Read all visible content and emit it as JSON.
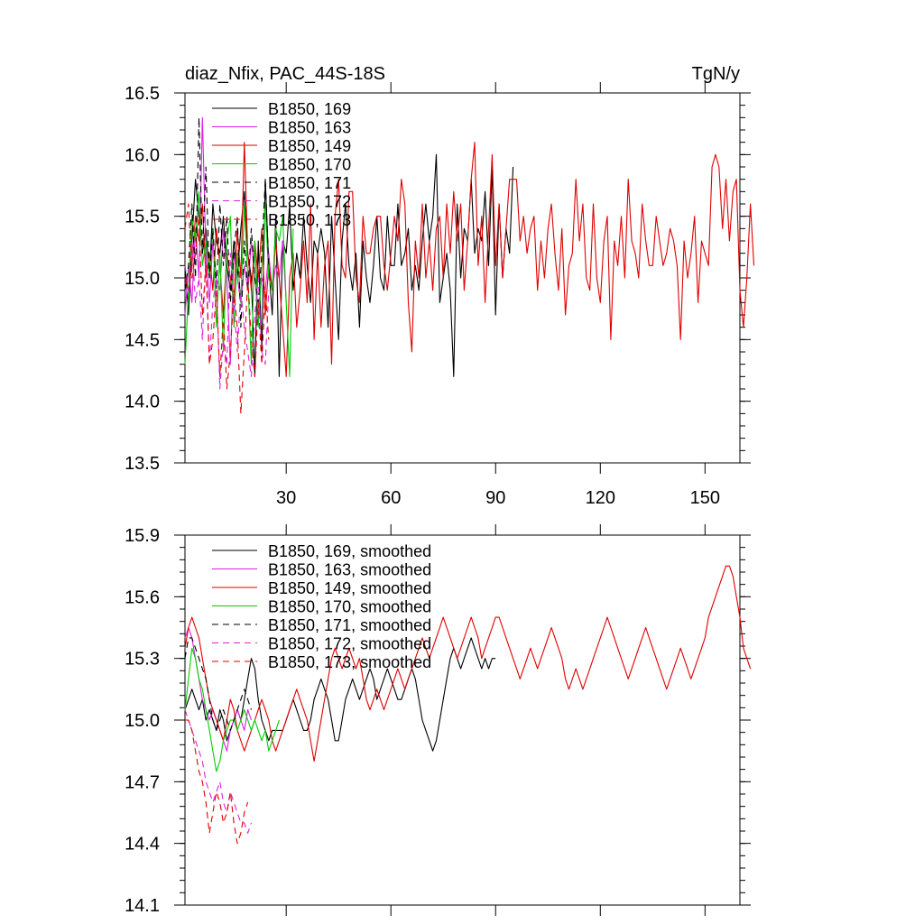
{
  "colors": {
    "black": "#000000",
    "magenta": "#e020e0",
    "red": "#e00000",
    "green": "#00d000"
  },
  "chart_data": [
    {
      "type": "line",
      "title": "diaz_Nfix, PAC_44S-18S",
      "units": "TgN/y",
      "xlim": [
        1,
        160
      ],
      "ylim": [
        13.5,
        16.5
      ],
      "xticks": [
        30,
        60,
        90,
        120,
        150
      ],
      "yticks": [
        13.5,
        14.0,
        14.5,
        15.0,
        15.5,
        16.0,
        16.5
      ],
      "ytick_labels": [
        "13.5",
        "14.0",
        "14.5",
        "15.0",
        "15.5",
        "16.0",
        "16.5"
      ],
      "legend_position": "top-left",
      "series": [
        {
          "name": "B1850, 169",
          "color": "#000000",
          "dash": "solid",
          "values": [
            15.1,
            14.7,
            15.3,
            15.8,
            15.5,
            15.2,
            15.4,
            15.0,
            15.6,
            15.3,
            15.2,
            15.5,
            15.1,
            14.9,
            15.3,
            15.0,
            15.4,
            15.7,
            15.2,
            15.0,
            14.2,
            15.3,
            14.4,
            15.8,
            15.1,
            14.7,
            15.5,
            14.2,
            15.3,
            15.2,
            15.6,
            14.9,
            15.2,
            15.0,
            15.5,
            15.1,
            14.8,
            15.3,
            15.2,
            15.4,
            15.2,
            14.6,
            15.5,
            15.0,
            14.5,
            15.3,
            15.6,
            15.1,
            14.9,
            15.2,
            14.6,
            15.3,
            15.0,
            14.8,
            15.1,
            15.5,
            15.0,
            14.9,
            15.5,
            15.1,
            15.1,
            15.6,
            15.1,
            15.2,
            15.4,
            14.9,
            15.1,
            14.9,
            15.3,
            15.6,
            15.3,
            15.5,
            16.0,
            14.8,
            15.0,
            15.2,
            14.9,
            14.2,
            15.6,
            15.0,
            15.4,
            15.3,
            15.8,
            15.2,
            15.4,
            15.3,
            15.7,
            15.1,
            15.9,
            14.7,
            15.6,
            15.0,
            15.4,
            15.2,
            15.9
          ]
        },
        {
          "name": "B1850, 163",
          "color": "#e020e0",
          "dash": "solid",
          "values": [
            14.7,
            15.1,
            14.8,
            15.4,
            15.0,
            16.3,
            15.2,
            14.8,
            15.3,
            15.0,
            14.9,
            15.4,
            15.0,
            14.3,
            15.2,
            15.0,
            14.8,
            15.1,
            14.9,
            15.3,
            15.0,
            14.7,
            15.0,
            14.9,
            15.2,
            14.9,
            15.1,
            15.0,
            15.3,
            14.8
          ]
        },
        {
          "name": "B1850, 149",
          "color": "#e00000",
          "dash": "solid",
          "values": [
            15.0,
            14.9,
            15.1,
            15.5,
            15.3,
            15.6,
            15.0,
            15.2,
            14.9,
            15.4,
            15.1,
            14.7,
            15.2,
            15.0,
            14.8,
            15.4,
            15.0,
            16.1,
            15.2,
            14.9,
            15.3,
            15.0,
            15.4,
            14.7,
            15.1,
            14.9,
            15.3,
            15.0,
            14.6,
            14.2,
            15.0,
            15.2,
            14.6,
            14.9,
            15.3,
            14.8,
            15.6,
            14.5,
            15.2,
            14.6,
            15.1,
            15.3,
            14.3,
            15.5,
            15.8,
            15.1,
            15.0,
            15.7,
            15.7,
            15.0,
            14.8,
            15.5,
            15.2,
            15.2,
            15.4,
            15.5,
            15.5,
            15.1,
            14.9,
            15.2,
            15.5,
            15.3,
            15.8,
            15.6,
            14.8,
            14.4,
            15.3,
            15.0,
            15.6,
            15.0,
            15.3,
            14.9,
            15.4,
            15.5,
            15.0,
            15.6,
            15.2,
            15.7,
            15.3,
            15.6,
            14.9,
            15.3,
            15.8,
            16.1,
            15.1,
            15.5,
            14.8,
            15.4,
            16.0,
            15.1,
            15.6,
            15.0,
            15.4,
            15.8,
            15.8,
            15.8,
            15.3,
            15.5,
            15.2,
            15.4,
            15.5,
            14.9,
            15.3,
            15.0,
            15.4,
            15.6,
            15.2,
            14.9,
            15.4,
            14.7,
            15.1,
            15.2,
            15.8,
            15.3,
            15.6,
            15.0,
            14.9,
            15.6,
            15.0,
            14.8,
            15.3,
            15.5,
            14.5,
            15.3,
            15.1,
            15.5,
            15.0,
            15.8,
            15.3,
            15.2,
            15.0,
            15.6,
            15.3,
            15.1,
            15.1,
            15.5,
            15.3,
            15.1,
            15.2,
            15.4,
            15.3,
            15.1,
            14.5,
            15.3,
            15.0,
            15.2,
            15.5,
            14.8,
            15.3,
            15.2,
            15.1,
            15.9,
            16.0,
            15.9,
            15.4,
            15.8,
            15.3,
            15.7,
            15.8,
            14.9,
            14.6,
            15.0,
            15.6,
            15.1
          ]
        },
        {
          "name": "B1850, 170",
          "color": "#00d000",
          "dash": "solid",
          "values": [
            14.3,
            14.9,
            15.5,
            15.3,
            15.7,
            15.1,
            15.3,
            15.0,
            15.4,
            14.6,
            15.2,
            14.4,
            15.3,
            15.5,
            14.6,
            15.2,
            14.8,
            15.6,
            15.0,
            14.3,
            15.3,
            14.6,
            15.1,
            15.6,
            15.0,
            14.9,
            15.4,
            15.3,
            15.5,
            14.8,
            14.2,
            15.4
          ]
        },
        {
          "name": "B1850, 171",
          "color": "#000000",
          "dash": "dashed",
          "values": [
            14.9,
            15.1,
            15.6,
            15.0,
            16.3,
            15.2,
            15.9,
            15.0,
            15.4,
            14.9,
            15.6,
            15.1,
            15.5,
            14.8,
            15.2,
            15.5,
            14.6,
            15.3,
            14.9,
            15.4,
            15.0,
            14.8,
            15.2,
            15.8,
            15.1
          ]
        },
        {
          "name": "B1850, 172",
          "color": "#e020e0",
          "dash": "dashed",
          "values": [
            15.1,
            14.9,
            15.3,
            14.8,
            15.0,
            14.5,
            15.2,
            14.3,
            14.8,
            15.0,
            14.1,
            14.5,
            14.3,
            15.2,
            14.8,
            14.4,
            14.9,
            14.6,
            14.4,
            14.2,
            14.7,
            15.0,
            14.4,
            14.3,
            14.9
          ]
        },
        {
          "name": "B1850, 173",
          "color": "#e00000",
          "dash": "dashed",
          "values": [
            15.4,
            15.6,
            15.0,
            15.2,
            15.5,
            14.7,
            15.1,
            14.3,
            14.5,
            14.9,
            14.2,
            14.7,
            14.1,
            14.4,
            14.9,
            14.6,
            13.9,
            14.4,
            15.0,
            14.5,
            14.2,
            14.8,
            14.3,
            14.9,
            14.5
          ]
        }
      ]
    },
    {
      "type": "line",
      "title": "",
      "xlim": [
        1,
        160
      ],
      "ylim": [
        14.1,
        15.9
      ],
      "xticks": [
        30,
        60,
        90,
        120,
        150
      ],
      "yticks": [
        14.1,
        14.4,
        14.7,
        15.0,
        15.3,
        15.6,
        15.9
      ],
      "ytick_labels": [
        "14.1",
        "14.4",
        "14.7",
        "15.0",
        "15.3",
        "15.6",
        "15.9"
      ],
      "legend_position": "top-left",
      "series": [
        {
          "name": "B1850, 169, smoothed",
          "color": "#000000",
          "dash": "solid",
          "values": [
            15.05,
            15.1,
            15.15,
            15.1,
            15.05,
            15.1,
            15.0,
            15.05,
            15.0,
            14.95,
            15.05,
            15.0,
            14.9,
            14.95,
            15.0,
            15.05,
            15.0,
            15.1,
            15.2,
            15.3,
            15.25,
            15.1,
            15.0,
            14.95,
            14.9,
            14.95,
            14.95,
            14.95,
            14.95,
            15.0,
            15.05,
            15.1,
            15.05,
            15.0,
            14.95,
            14.95,
            15.0,
            15.1,
            15.15,
            15.2,
            15.15,
            15.1,
            15.0,
            14.9,
            14.9,
            15.0,
            15.1,
            15.15,
            15.2,
            15.15,
            15.1,
            15.15,
            15.2,
            15.25,
            15.2,
            15.1,
            15.15,
            15.2,
            15.25,
            15.2,
            15.15,
            15.1,
            15.1,
            15.15,
            15.2,
            15.25,
            15.2,
            15.1,
            15.0,
            14.95,
            14.9,
            14.85,
            14.9,
            15.0,
            15.1,
            15.2,
            15.3,
            15.35,
            15.3,
            15.25,
            15.3,
            15.35,
            15.4,
            15.35,
            15.3,
            15.25,
            15.3,
            15.25,
            15.3,
            15.3
          ]
        },
        {
          "name": "B1850, 163, smoothed",
          "color": "#e020e0",
          "dash": "solid",
          "values": [
            15.4,
            15.45,
            15.4,
            15.3,
            15.2,
            15.1,
            15.05,
            15.0,
            15.05,
            15.0,
            14.95,
            14.9,
            14.85,
            14.95,
            15.0,
            15.05,
            15.0,
            14.95,
            15.05,
            15.0
          ]
        },
        {
          "name": "B1850, 149, smoothed",
          "color": "#e00000",
          "dash": "solid",
          "values": [
            15.35,
            15.45,
            15.5,
            15.45,
            15.4,
            15.3,
            15.2,
            15.1,
            15.05,
            15.0,
            14.95,
            14.9,
            15.0,
            15.1,
            15.05,
            14.95,
            14.9,
            14.85,
            14.9,
            14.95,
            15.0,
            15.05,
            15.1,
            15.05,
            15.0,
            14.9,
            14.85,
            14.9,
            14.95,
            15.0,
            15.05,
            15.1,
            15.15,
            15.1,
            15.05,
            15.0,
            14.9,
            14.8,
            14.9,
            15.0,
            15.1,
            15.2,
            15.3,
            15.35,
            15.3,
            15.25,
            15.3,
            15.35,
            15.3,
            15.25,
            15.3,
            15.2,
            15.1,
            15.05,
            15.1,
            15.15,
            15.1,
            15.05,
            15.1,
            15.15,
            15.2,
            15.25,
            15.2,
            15.15,
            15.2,
            15.25,
            15.3,
            15.35,
            15.4,
            15.35,
            15.3,
            15.35,
            15.4,
            15.45,
            15.5,
            15.45,
            15.4,
            15.35,
            15.3,
            15.35,
            15.4,
            15.45,
            15.5,
            15.45,
            15.4,
            15.3,
            15.35,
            15.4,
            15.45,
            15.5,
            15.5,
            15.45,
            15.4,
            15.35,
            15.3,
            15.25,
            15.2,
            15.25,
            15.3,
            15.35,
            15.3,
            15.25,
            15.3,
            15.35,
            15.4,
            15.45,
            15.4,
            15.35,
            15.3,
            15.2,
            15.15,
            15.2,
            15.25,
            15.2,
            15.15,
            15.2,
            15.25,
            15.3,
            15.35,
            15.4,
            15.45,
            15.5,
            15.45,
            15.4,
            15.35,
            15.3,
            15.25,
            15.2,
            15.25,
            15.3,
            15.35,
            15.4,
            15.45,
            15.4,
            15.35,
            15.3,
            15.25,
            15.2,
            15.15,
            15.2,
            15.25,
            15.3,
            15.35,
            15.3,
            15.25,
            15.2,
            15.25,
            15.3,
            15.35,
            15.4,
            15.5,
            15.55,
            15.6,
            15.65,
            15.7,
            15.75,
            15.75,
            15.7,
            15.6,
            15.5,
            15.35,
            15.3,
            15.25
          ]
        },
        {
          "name": "B1850, 170, smoothed",
          "color": "#00d000",
          "dash": "solid",
          "values": [
            15.05,
            15.2,
            15.35,
            15.3,
            15.2,
            15.15,
            15.05,
            14.95,
            14.85,
            14.75,
            14.8,
            14.9,
            14.95,
            15.0,
            15.0,
            14.95,
            15.0,
            15.05,
            15.0,
            14.95,
            15.0,
            14.95,
            14.9,
            14.95,
            14.85,
            14.9,
            14.95,
            15.0
          ]
        },
        {
          "name": "B1850, 171, smoothed",
          "color": "#000000",
          "dash": "dashed",
          "values": [
            15.3,
            15.4,
            15.4,
            15.35,
            15.3,
            15.25,
            15.2,
            15.1,
            15.0,
            14.95,
            15.0,
            15.05,
            15.0,
            14.95,
            15.0,
            15.05,
            15.1,
            15.15,
            15.1,
            15.05
          ]
        },
        {
          "name": "B1850, 172, smoothed",
          "color": "#e020e0",
          "dash": "dashed",
          "values": [
            15.05,
            15.0,
            14.95,
            14.9,
            14.85,
            14.8,
            14.7,
            14.65,
            14.6,
            14.65,
            14.7,
            14.6,
            14.55,
            14.65,
            14.6,
            14.55,
            14.5,
            14.5,
            14.45,
            14.5
          ]
        },
        {
          "name": "B1850, 173, smoothed",
          "color": "#e00000",
          "dash": "dashed",
          "values": [
            15.0,
            15.0,
            14.95,
            14.85,
            14.75,
            14.7,
            14.6,
            14.45,
            14.55,
            14.65,
            14.6,
            14.5,
            14.55,
            14.65,
            14.5,
            14.4,
            14.45,
            14.55,
            14.6
          ]
        }
      ]
    }
  ]
}
